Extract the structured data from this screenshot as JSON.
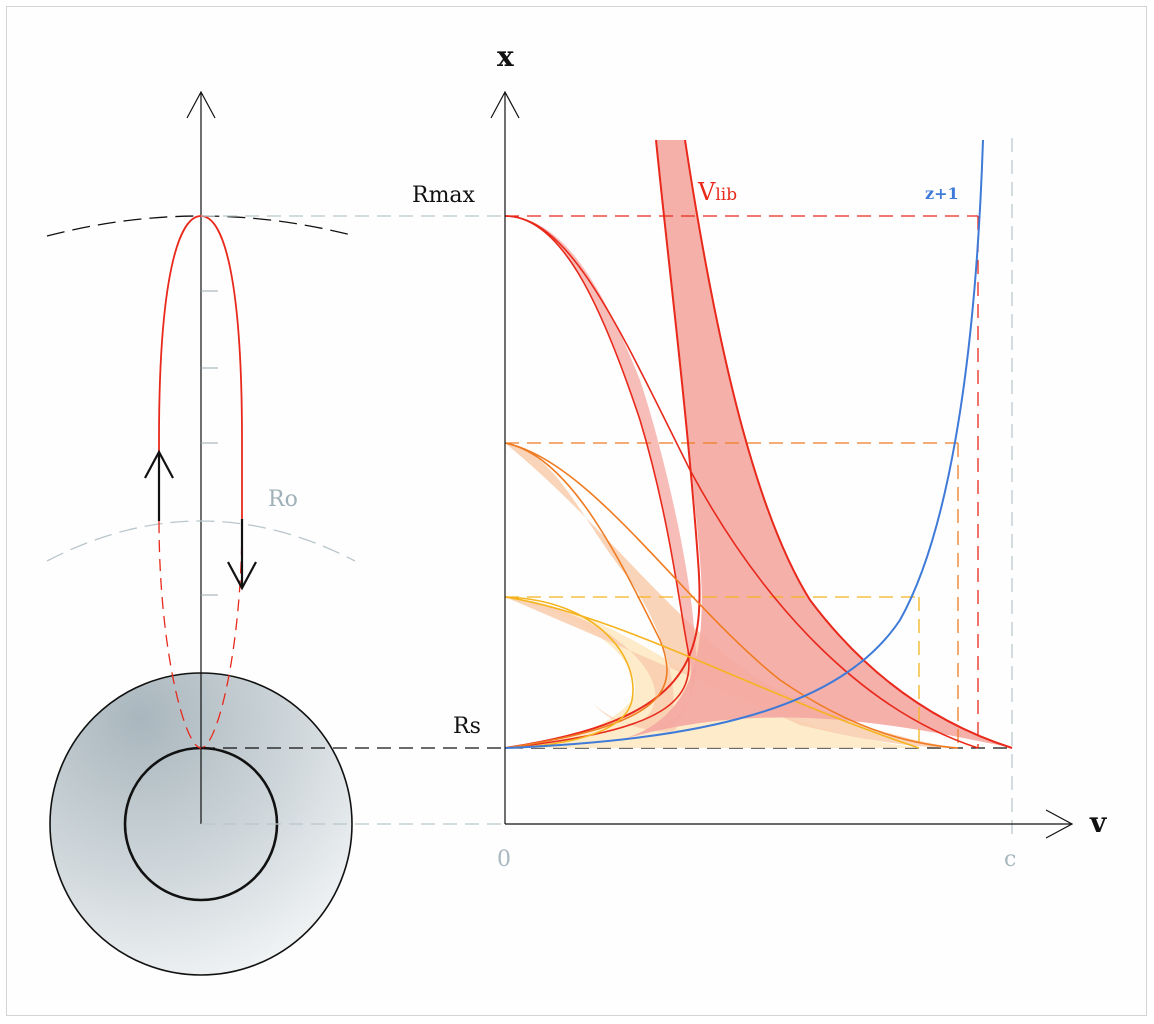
{
  "labels": {
    "x_axis": "x",
    "v_axis": "v",
    "rmax": "Rmax",
    "rs": "Rs",
    "ro": "Ro",
    "vlib_main": "V",
    "vlib_sub": "lib",
    "z_plus_1": "z+1",
    "origin": "0",
    "c": "c"
  },
  "colors": {
    "red": "#e8291b",
    "red_fill": "#f4a7a1",
    "orange": "#ef7c22",
    "orange_fill": "#f9cfb0",
    "yellow": "#f5b41f",
    "yellow_fill": "#fde8bf",
    "blue": "#3f7ad8",
    "gray_dash": "#b9c6cc",
    "black": "#111111"
  }
}
